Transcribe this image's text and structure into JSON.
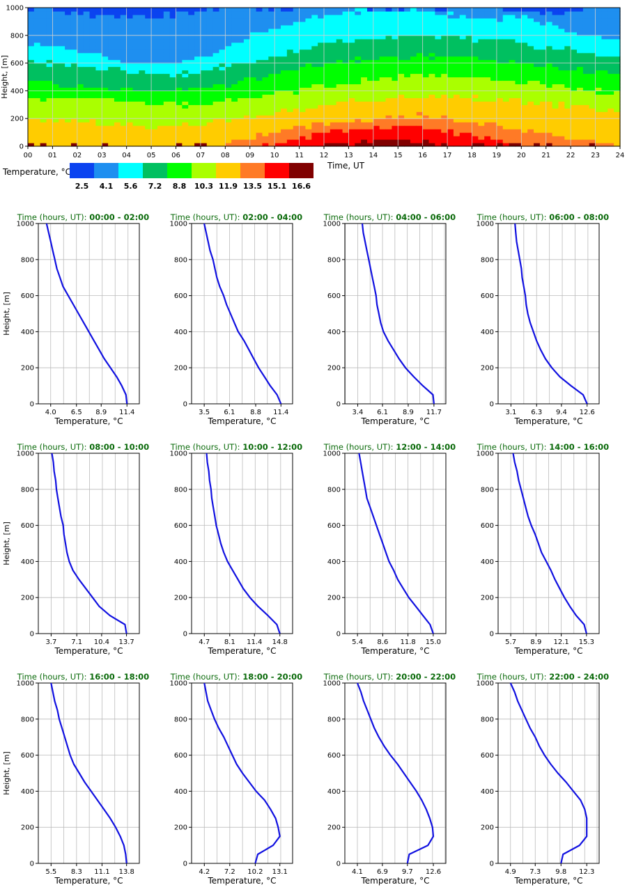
{
  "chart_data": [
    {
      "type": "heatmap",
      "title": "",
      "xlabel": "Time, UT",
      "ylabel": "Height, [m]",
      "xlim": [
        0,
        24
      ],
      "ylim": [
        0,
        1000
      ],
      "x_ticks": [
        "00",
        "01",
        "02",
        "03",
        "04",
        "05",
        "06",
        "07",
        "08",
        "09",
        "10",
        "11",
        "12",
        "13",
        "14",
        "15",
        "16",
        "17",
        "18",
        "19",
        "20",
        "21",
        "22",
        "23",
        "24"
      ],
      "y_ticks": [
        "0",
        "200",
        "400",
        "600",
        "800",
        "1000"
      ],
      "grid": true,
      "colorbar": {
        "label": "Temperature, °C",
        "ticks": [
          "2.5",
          "4.1",
          "5.6",
          "7.2",
          "8.8",
          "10.3",
          "11.9",
          "13.5",
          "15.1",
          "16.6"
        ],
        "colors": [
          "#0b43f0",
          "#1e8ff0",
          "#00ffff",
          "#00c060",
          "#00ff00",
          "#aaff00",
          "#ffcc00",
          "#ff7a26",
          "#ff0000",
          "#800000"
        ]
      },
      "levels": [
        2.5,
        4.1,
        5.6,
        7.2,
        8.8,
        10.3,
        11.9,
        13.5,
        15.1,
        16.6
      ],
      "heights": [
        0,
        50,
        100,
        150,
        200,
        250,
        300,
        350,
        400,
        450,
        500,
        550,
        600,
        650,
        700,
        750,
        800,
        850,
        900,
        950,
        1000
      ],
      "boundaries": {
        "times": [
          0,
          1,
          2,
          3,
          4,
          5,
          6,
          7,
          8,
          9,
          10,
          11,
          12,
          13,
          14,
          15,
          16,
          17,
          18,
          19,
          20,
          21,
          22,
          23,
          24
        ],
        "h_4_1": [
          1000,
          980,
          960,
          950,
          930,
          930,
          960,
          990,
          1000,
          1000,
          1000,
          1000,
          1000,
          1000,
          1000,
          1000,
          1000,
          1000,
          1000,
          1000,
          960,
          950,
          980,
          1000,
          1000
        ],
        "h_5_6": [
          750,
          720,
          690,
          650,
          620,
          600,
          600,
          650,
          720,
          800,
          860,
          900,
          940,
          970,
          980,
          990,
          980,
          950,
          920,
          920,
          930,
          880,
          830,
          790,
          760
        ],
        "h_7_2": [
          620,
          600,
          580,
          560,
          540,
          520,
          520,
          540,
          580,
          620,
          660,
          700,
          740,
          760,
          780,
          790,
          800,
          800,
          780,
          760,
          740,
          720,
          700,
          660,
          640
        ],
        "h_8_8": [
          480,
          460,
          440,
          430,
          420,
          400,
          400,
          420,
          450,
          480,
          520,
          560,
          600,
          620,
          640,
          650,
          660,
          650,
          640,
          620,
          600,
          580,
          560,
          540,
          520
        ],
        "h_10_3": [
          360,
          350,
          340,
          330,
          320,
          300,
          300,
          310,
          330,
          350,
          380,
          410,
          440,
          460,
          480,
          500,
          520,
          510,
          500,
          480,
          460,
          440,
          420,
          400,
          380
        ],
        "h_11_9": [
          200,
          190,
          180,
          170,
          160,
          150,
          150,
          160,
          180,
          210,
          240,
          270,
          310,
          330,
          340,
          350,
          360,
          360,
          350,
          340,
          330,
          310,
          290,
          270,
          260
        ],
        "h_13_5": [
          0,
          0,
          0,
          0,
          0,
          0,
          0,
          0,
          20,
          60,
          100,
          140,
          170,
          190,
          200,
          210,
          220,
          200,
          180,
          150,
          120,
          90,
          60,
          40,
          20
        ],
        "h_15_1": [
          0,
          0,
          0,
          0,
          0,
          0,
          0,
          0,
          0,
          0,
          20,
          60,
          100,
          120,
          130,
          140,
          130,
          110,
          80,
          40,
          0,
          0,
          0,
          0,
          0
        ],
        "h_16_6": [
          0,
          0,
          0,
          0,
          0,
          0,
          0,
          0,
          0,
          0,
          0,
          0,
          0,
          20,
          40,
          50,
          40,
          0,
          0,
          0,
          0,
          0,
          0,
          0,
          0
        ]
      }
    },
    {
      "type": "line",
      "title_prefix": "Time (hours, UT): ",
      "title_range": "00:00 - 02:00",
      "xlabel": "Temperature, °C",
      "ylabel": "Height, [m]",
      "ylim": [
        0,
        1000
      ],
      "x_ticks": [
        "4.0",
        "6.5",
        "8.9",
        "11.4"
      ],
      "xlim": [
        2.8,
        12.6
      ],
      "grid": true,
      "x": [
        11.4,
        11.3,
        10.9,
        10.4,
        9.8,
        9.2,
        8.7,
        8.2,
        7.7,
        7.2,
        6.7,
        6.2,
        5.7,
        5.2,
        4.9,
        4.6,
        4.4,
        4.2,
        4.0,
        3.8,
        3.6
      ],
      "y": [
        0,
        50,
        100,
        150,
        200,
        250,
        300,
        350,
        400,
        450,
        500,
        550,
        600,
        650,
        700,
        750,
        800,
        850,
        900,
        950,
        1000
      ]
    },
    {
      "type": "line",
      "title_prefix": "Time (hours, UT): ",
      "title_range": "02:00 - 04:00",
      "xlabel": "Temperature, °C",
      "ylabel": "Height, [m]",
      "ylim": [
        0,
        1000
      ],
      "x_ticks": [
        "3.5",
        "6.1",
        "8.8",
        "11.4"
      ],
      "xlim": [
        2.2,
        12.6
      ],
      "grid": true,
      "x": [
        11.4,
        11.0,
        10.3,
        9.7,
        9.1,
        8.6,
        8.1,
        7.6,
        7.0,
        6.6,
        6.2,
        5.8,
        5.5,
        5.1,
        4.8,
        4.6,
        4.4,
        4.1,
        3.9,
        3.7,
        3.5
      ],
      "y": [
        0,
        50,
        100,
        150,
        200,
        250,
        300,
        350,
        400,
        450,
        500,
        550,
        600,
        650,
        700,
        750,
        800,
        850,
        900,
        950,
        1000
      ]
    },
    {
      "type": "line",
      "title_prefix": "Time (hours, UT): ",
      "title_range": "04:00 - 06:00",
      "xlabel": "Temperature, °C",
      "ylabel": "Height, [m]",
      "ylim": [
        0,
        1000
      ],
      "x_ticks": [
        "3.4",
        "6.1",
        "8.9",
        "11.7"
      ],
      "xlim": [
        2.0,
        13.0
      ],
      "grid": true,
      "x": [
        11.7,
        11.6,
        10.5,
        9.5,
        8.6,
        7.9,
        7.3,
        6.7,
        6.2,
        5.9,
        5.7,
        5.5,
        5.4,
        5.2,
        5.0,
        4.8,
        4.6,
        4.4,
        4.2,
        4.0,
        3.9
      ],
      "y": [
        0,
        50,
        100,
        150,
        200,
        250,
        300,
        350,
        400,
        450,
        500,
        550,
        600,
        650,
        700,
        750,
        800,
        850,
        900,
        950,
        1000
      ]
    },
    {
      "type": "line",
      "title_prefix": "Time (hours, UT): ",
      "title_range": "06:00 - 08:00",
      "xlabel": "Temperature, °C",
      "ylabel": "Height, [m]",
      "ylim": [
        0,
        1000
      ],
      "x_ticks": [
        "3.1",
        "6.3",
        "9.4",
        "12.6"
      ],
      "xlim": [
        1.5,
        14.1
      ],
      "grid": true,
      "x": [
        12.6,
        12.1,
        10.6,
        9.2,
        8.2,
        7.4,
        6.8,
        6.3,
        5.9,
        5.5,
        5.2,
        5.0,
        4.9,
        4.7,
        4.5,
        4.4,
        4.2,
        4.0,
        3.8,
        3.7,
        3.6
      ],
      "y": [
        0,
        50,
        100,
        150,
        200,
        250,
        300,
        350,
        400,
        450,
        500,
        550,
        600,
        650,
        700,
        750,
        800,
        850,
        900,
        950,
        1000
      ]
    },
    {
      "type": "line",
      "title_prefix": "Time (hours, UT): ",
      "title_range": "08:00 - 10:00",
      "xlabel": "Temperature, °C",
      "ylabel": "Height, [m]",
      "ylim": [
        0,
        1000
      ],
      "x_ticks": [
        "3.7",
        "7.1",
        "10.4",
        "13.7"
      ],
      "xlim": [
        2.0,
        15.4
      ],
      "grid": true,
      "x": [
        13.7,
        13.5,
        11.5,
        10.1,
        9.2,
        8.3,
        7.4,
        6.6,
        6.1,
        5.8,
        5.6,
        5.4,
        5.3,
        5.0,
        4.8,
        4.6,
        4.4,
        4.3,
        4.1,
        4.0,
        3.8
      ],
      "y": [
        0,
        50,
        100,
        150,
        200,
        250,
        300,
        350,
        400,
        450,
        500,
        550,
        600,
        650,
        700,
        750,
        800,
        850,
        900,
        950,
        1000
      ]
    },
    {
      "type": "line",
      "title_prefix": "Time (hours, UT): ",
      "title_range": "10:00 - 12:00",
      "xlabel": "Temperature, °C",
      "ylabel": "Height, [m]",
      "ylim": [
        0,
        1000
      ],
      "x_ticks": [
        "4.7",
        "8.1",
        "11.4",
        "14.8"
      ],
      "xlim": [
        3.0,
        16.5
      ],
      "grid": true,
      "x": [
        14.8,
        14.4,
        13.2,
        11.9,
        10.8,
        9.9,
        9.2,
        8.5,
        7.8,
        7.3,
        6.9,
        6.6,
        6.3,
        6.1,
        5.9,
        5.7,
        5.6,
        5.4,
        5.3,
        5.1,
        5.0
      ],
      "y": [
        0,
        50,
        100,
        150,
        200,
        250,
        300,
        350,
        400,
        450,
        500,
        550,
        600,
        650,
        700,
        750,
        800,
        850,
        900,
        950,
        1000
      ]
    },
    {
      "type": "line",
      "title_prefix": "Time (hours, UT): ",
      "title_range": "12:00 - 14:00",
      "xlabel": "Temperature, °C",
      "ylabel": "Height, [m]",
      "ylim": [
        0,
        1000
      ],
      "x_ticks": [
        "5.4",
        "8.6",
        "11.8",
        "15.0"
      ],
      "xlim": [
        3.8,
        16.6
      ],
      "grid": true,
      "x": [
        15.0,
        14.6,
        13.7,
        12.8,
        11.9,
        11.2,
        10.5,
        10.0,
        9.4,
        9.0,
        8.6,
        8.2,
        7.8,
        7.4,
        7.0,
        6.6,
        6.4,
        6.2,
        6.0,
        5.8,
        5.6
      ],
      "y": [
        0,
        50,
        100,
        150,
        200,
        250,
        300,
        350,
        400,
        450,
        500,
        550,
        600,
        650,
        700,
        750,
        800,
        850,
        900,
        950,
        1000
      ]
    },
    {
      "type": "line",
      "title_prefix": "Time (hours, UT): ",
      "title_range": "14:00 - 16:00",
      "xlabel": "Temperature, °C",
      "ylabel": "Height, [m]",
      "ylim": [
        0,
        1000
      ],
      "x_ticks": [
        "5.7",
        "8.9",
        "12.1",
        "15.3"
      ],
      "xlim": [
        4.1,
        16.9
      ],
      "grid": true,
      "x": [
        15.3,
        15.0,
        14.0,
        13.2,
        12.5,
        11.9,
        11.3,
        10.8,
        10.2,
        9.6,
        9.2,
        8.8,
        8.3,
        7.9,
        7.6,
        7.3,
        7.0,
        6.7,
        6.5,
        6.2,
        6.0
      ],
      "y": [
        0,
        50,
        100,
        150,
        200,
        250,
        300,
        350,
        400,
        450,
        500,
        550,
        600,
        650,
        700,
        750,
        800,
        850,
        900,
        950,
        1000
      ]
    },
    {
      "type": "line",
      "title_prefix": "Time (hours, UT): ",
      "title_range": "16:00 - 18:00",
      "xlabel": "Temperature, °C",
      "ylabel": "Height, [m]",
      "ylim": [
        0,
        1000
      ],
      "x_ticks": [
        "5.5",
        "8.3",
        "11.1",
        "13.8"
      ],
      "xlim": [
        4.1,
        15.2
      ],
      "grid": true,
      "x": [
        13.8,
        13.7,
        13.5,
        13.1,
        12.6,
        12.0,
        11.3,
        10.6,
        9.9,
        9.2,
        8.6,
        8.0,
        7.6,
        7.3,
        7.0,
        6.7,
        6.4,
        6.2,
        5.9,
        5.7,
        5.5
      ],
      "y": [
        0,
        50,
        100,
        150,
        200,
        250,
        300,
        350,
        400,
        450,
        500,
        550,
        600,
        650,
        700,
        750,
        800,
        850,
        900,
        950,
        1000
      ]
    },
    {
      "type": "line",
      "title_prefix": "Time (hours, UT): ",
      "title_range": "18:00 - 20:00",
      "xlabel": "Temperature, °C",
      "ylabel": "Height, [m]",
      "ylim": [
        0,
        1000
      ],
      "x_ticks": [
        "4.2",
        "7.2",
        "10.2",
        "13.1"
      ],
      "xlim": [
        2.7,
        14.6
      ],
      "grid": true,
      "x": [
        10.2,
        10.5,
        12.3,
        13.1,
        12.9,
        12.6,
        12.0,
        11.3,
        10.3,
        9.5,
        8.7,
        8.0,
        7.5,
        7.0,
        6.5,
        5.9,
        5.4,
        5.0,
        4.6,
        4.4,
        4.2
      ],
      "y": [
        0,
        50,
        100,
        150,
        200,
        250,
        300,
        350,
        400,
        450,
        500,
        550,
        600,
        650,
        700,
        750,
        800,
        850,
        900,
        950,
        1000
      ]
    },
    {
      "type": "line",
      "title_prefix": "Time (hours, UT): ",
      "title_range": "20:00 - 22:00",
      "xlabel": "Temperature, °C",
      "ylabel": "Height, [m]",
      "ylim": [
        0,
        1000
      ],
      "x_ticks": [
        "4.1",
        "6.9",
        "9.7",
        "12.6"
      ],
      "xlim": [
        2.7,
        14.0
      ],
      "grid": true,
      "x": [
        9.7,
        9.9,
        12.0,
        12.6,
        12.5,
        12.2,
        11.8,
        11.3,
        10.7,
        10.0,
        9.3,
        8.6,
        7.8,
        7.1,
        6.5,
        6.0,
        5.6,
        5.2,
        4.8,
        4.5,
        4.1
      ],
      "y": [
        0,
        50,
        100,
        150,
        200,
        250,
        300,
        350,
        400,
        450,
        500,
        550,
        600,
        650,
        700,
        750,
        800,
        850,
        900,
        950,
        1000
      ]
    },
    {
      "type": "line",
      "title_prefix": "Time (hours, UT): ",
      "title_range": "22:00 - 24:00",
      "xlabel": "Temperature, °C",
      "ylabel": "Height, [m]",
      "ylim": [
        0,
        1000
      ],
      "x_ticks": [
        "4.9",
        "7.3",
        "9.8",
        "12.3"
      ],
      "xlim": [
        3.7,
        13.5
      ],
      "grid": true,
      "x": [
        9.8,
        10.0,
        11.6,
        12.3,
        12.3,
        12.3,
        12.1,
        11.7,
        11.0,
        10.3,
        9.5,
        8.8,
        8.2,
        7.7,
        7.3,
        6.8,
        6.4,
        6.0,
        5.6,
        5.3,
        4.9
      ],
      "y": [
        0,
        50,
        100,
        150,
        200,
        250,
        300,
        350,
        400,
        450,
        500,
        550,
        600,
        650,
        700,
        750,
        800,
        850,
        900,
        950,
        1000
      ]
    }
  ],
  "colors": {
    "profile_line": "#1010e0",
    "title": "#0a6a0a",
    "grid": "#bbbbbb"
  }
}
